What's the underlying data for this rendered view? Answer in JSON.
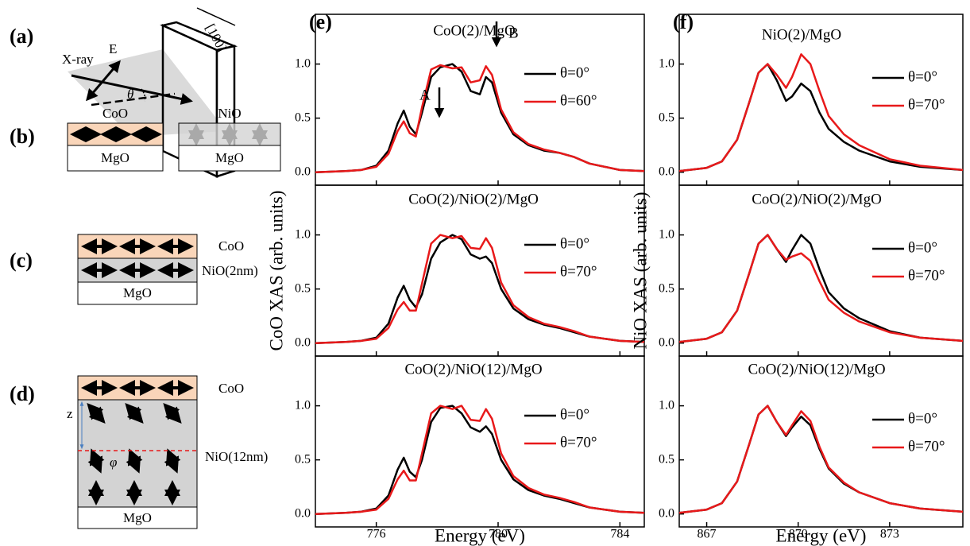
{
  "diagrams": {
    "a": {
      "label": "(a)",
      "xray": "X-ray",
      "field": "E",
      "angle": "θ",
      "direction": "[100]"
    },
    "b": {
      "label": "(b)",
      "left_top": "CoO",
      "left_sub": "MgO",
      "right_top": "NiO",
      "right_sub": "MgO"
    },
    "c": {
      "label": "(c)",
      "top": "CoO",
      "middle": "NiO(2nm)",
      "sub": "MgO"
    },
    "d": {
      "label": "(d)",
      "top": "CoO",
      "depth": "z",
      "middle": "NiO(12nm)",
      "angle": "φ",
      "sub": "MgO"
    }
  },
  "chart_data": [
    {
      "type": "line",
      "panel_label": "(e)",
      "title": "CoO(2)/MgO",
      "annotations": [
        "A",
        "B"
      ],
      "x": [
        774,
        775,
        775.5,
        776,
        776.4,
        776.7,
        776.9,
        777.1,
        777.3,
        777.5,
        777.8,
        778.1,
        778.5,
        778.8,
        779.1,
        779.4,
        779.6,
        779.8,
        780.1,
        780.5,
        781,
        781.5,
        782,
        782.5,
        783,
        784,
        784.8
      ],
      "series": [
        {
          "name": "θ=0°",
          "color": "#000000",
          "values": [
            0,
            0.01,
            0.02,
            0.06,
            0.2,
            0.45,
            0.57,
            0.42,
            0.35,
            0.55,
            0.88,
            0.97,
            1.0,
            0.93,
            0.75,
            0.72,
            0.88,
            0.83,
            0.55,
            0.35,
            0.25,
            0.2,
            0.18,
            0.14,
            0.08,
            0.02,
            0.01
          ]
        },
        {
          "name": "θ=60°",
          "color": "#e8191a",
          "values": [
            0,
            0.01,
            0.02,
            0.05,
            0.17,
            0.38,
            0.47,
            0.36,
            0.33,
            0.6,
            0.95,
            0.99,
            0.96,
            0.97,
            0.83,
            0.85,
            0.98,
            0.9,
            0.58,
            0.37,
            0.26,
            0.21,
            0.18,
            0.14,
            0.08,
            0.02,
            0.01
          ]
        }
      ],
      "xlim": [
        774,
        784.8
      ],
      "ylim": [
        -0.12,
        1.46
      ],
      "xticks": [
        776,
        780,
        784
      ],
      "yticks": [
        {
          "value": 0,
          "label": "0.0"
        },
        {
          "value": 0.5,
          "label": "0.5"
        },
        {
          "value": 1,
          "label": "1.0"
        }
      ]
    },
    {
      "type": "line",
      "title": "CoO(2)/NiO(2)/MgO",
      "ylabel": "CoO XAS (arb. units)",
      "x": [
        774,
        775,
        775.5,
        776,
        776.4,
        776.7,
        776.9,
        777.1,
        777.3,
        777.5,
        777.8,
        778.1,
        778.5,
        778.8,
        779.1,
        779.4,
        779.6,
        779.8,
        780.1,
        780.5,
        781,
        781.5,
        782,
        782.5,
        783,
        784,
        784.8
      ],
      "series": [
        {
          "name": "θ=0°",
          "color": "#000000",
          "values": [
            0,
            0.01,
            0.02,
            0.05,
            0.18,
            0.42,
            0.53,
            0.4,
            0.33,
            0.45,
            0.78,
            0.93,
            1.0,
            0.96,
            0.82,
            0.78,
            0.8,
            0.74,
            0.5,
            0.32,
            0.22,
            0.17,
            0.14,
            0.1,
            0.06,
            0.02,
            0.01
          ]
        },
        {
          "name": "θ=70°",
          "color": "#e8191a",
          "values": [
            0,
            0.01,
            0.02,
            0.04,
            0.14,
            0.31,
            0.38,
            0.3,
            0.3,
            0.55,
            0.92,
            1.0,
            0.97,
            0.99,
            0.88,
            0.87,
            0.97,
            0.88,
            0.56,
            0.35,
            0.24,
            0.18,
            0.15,
            0.11,
            0.06,
            0.02,
            0.01
          ]
        }
      ],
      "xlim": [
        774,
        784.8
      ],
      "ylim": [
        -0.12,
        1.46
      ],
      "xticks": [
        776,
        780,
        784
      ],
      "yticks": [
        {
          "value": 0,
          "label": "0.0"
        },
        {
          "value": 0.5,
          "label": "0.5"
        },
        {
          "value": 1,
          "label": "1.0"
        }
      ]
    },
    {
      "type": "line",
      "title": "CoO(2)/NiO(12)/MgO",
      "xlabel": "Energy (eV)",
      "x": [
        774,
        775,
        775.5,
        776,
        776.4,
        776.7,
        776.9,
        777.1,
        777.3,
        777.5,
        777.8,
        778.1,
        778.5,
        778.8,
        779.1,
        779.4,
        779.6,
        779.8,
        780.1,
        780.5,
        781,
        781.5,
        782,
        782.5,
        783,
        784,
        784.8
      ],
      "series": [
        {
          "name": "θ=0°",
          "color": "#000000",
          "values": [
            0,
            0.01,
            0.02,
            0.05,
            0.17,
            0.41,
            0.52,
            0.39,
            0.34,
            0.5,
            0.85,
            0.98,
            1.0,
            0.93,
            0.8,
            0.76,
            0.81,
            0.74,
            0.5,
            0.32,
            0.22,
            0.17,
            0.14,
            0.1,
            0.06,
            0.02,
            0.01
          ]
        },
        {
          "name": "θ=70°",
          "color": "#e8191a",
          "values": [
            0,
            0.01,
            0.02,
            0.04,
            0.14,
            0.32,
            0.4,
            0.31,
            0.31,
            0.56,
            0.93,
            1.0,
            0.97,
            1.0,
            0.87,
            0.86,
            0.97,
            0.88,
            0.56,
            0.35,
            0.24,
            0.18,
            0.15,
            0.11,
            0.06,
            0.02,
            0.01
          ]
        }
      ],
      "xlim": [
        774,
        784.8
      ],
      "ylim": [
        -0.12,
        1.46
      ],
      "xticks": [
        776,
        780,
        784
      ],
      "yticks": [
        {
          "value": 0,
          "label": "0.0"
        },
        {
          "value": 0.5,
          "label": "0.5"
        },
        {
          "value": 1,
          "label": "1.0"
        }
      ]
    },
    {
      "type": "line",
      "panel_label": "(f)",
      "title": "NiO(2)/MgO",
      "x": [
        866.1,
        867,
        867.5,
        868,
        868.4,
        868.7,
        869,
        869.3,
        869.6,
        869.8,
        870.1,
        870.4,
        870.7,
        871,
        871.5,
        872,
        873,
        874,
        875.4
      ],
      "series": [
        {
          "name": "θ=0°",
          "color": "#000000",
          "values": [
            0.01,
            0.04,
            0.1,
            0.3,
            0.65,
            0.92,
            1.0,
            0.85,
            0.66,
            0.7,
            0.82,
            0.75,
            0.55,
            0.4,
            0.28,
            0.2,
            0.1,
            0.05,
            0.02
          ]
        },
        {
          "name": "θ=70°",
          "color": "#e8191a",
          "values": [
            0.01,
            0.04,
            0.1,
            0.3,
            0.65,
            0.92,
            1.0,
            0.9,
            0.78,
            0.88,
            1.09,
            1.0,
            0.75,
            0.52,
            0.35,
            0.25,
            0.12,
            0.06,
            0.02
          ]
        }
      ],
      "xlim": [
        866.1,
        875.4
      ],
      "ylim": [
        -0.12,
        1.46
      ],
      "xticks": [
        867,
        870,
        873
      ],
      "yticks": [
        {
          "value": 0,
          "label": "0.0"
        },
        {
          "value": 0.5,
          "label": "0.5"
        },
        {
          "value": 1,
          "label": "1.0"
        }
      ]
    },
    {
      "type": "line",
      "title": "CoO(2)/NiO(2)/MgO",
      "ylabel": "NiO XAS (arb. units)",
      "x": [
        866.1,
        867,
        867.5,
        868,
        868.4,
        868.7,
        869,
        869.3,
        869.6,
        869.8,
        870.1,
        870.4,
        870.7,
        871,
        871.5,
        872,
        873,
        874,
        875.4
      ],
      "series": [
        {
          "name": "θ=0°",
          "color": "#000000",
          "values": [
            0.01,
            0.04,
            0.1,
            0.3,
            0.65,
            0.92,
            1.0,
            0.87,
            0.75,
            0.86,
            1.0,
            0.92,
            0.68,
            0.47,
            0.32,
            0.23,
            0.11,
            0.05,
            0.02
          ]
        },
        {
          "name": "θ=70°",
          "color": "#e8191a",
          "values": [
            0.01,
            0.04,
            0.1,
            0.3,
            0.65,
            0.92,
            1.0,
            0.87,
            0.77,
            0.8,
            0.83,
            0.76,
            0.57,
            0.4,
            0.28,
            0.2,
            0.1,
            0.05,
            0.02
          ]
        }
      ],
      "xlim": [
        866.1,
        875.4
      ],
      "ylim": [
        -0.12,
        1.46
      ],
      "xticks": [
        867,
        870,
        873
      ],
      "yticks": [
        {
          "value": 0,
          "label": "0.0"
        },
        {
          "value": 0.5,
          "label": "0.5"
        },
        {
          "value": 1,
          "label": "1.0"
        }
      ]
    },
    {
      "type": "line",
      "title": "CoO(2)/NiO(12)/MgO",
      "xlabel": "Energy (eV)",
      "x": [
        866.1,
        867,
        867.5,
        868,
        868.4,
        868.7,
        869,
        869.3,
        869.6,
        869.8,
        870.1,
        870.4,
        870.7,
        871,
        871.5,
        872,
        873,
        874,
        875.4
      ],
      "series": [
        {
          "name": "θ=0°",
          "color": "#000000",
          "values": [
            0.01,
            0.04,
            0.1,
            0.3,
            0.65,
            0.92,
            1.0,
            0.85,
            0.72,
            0.8,
            0.9,
            0.82,
            0.6,
            0.42,
            0.28,
            0.2,
            0.1,
            0.05,
            0.02
          ]
        },
        {
          "name": "θ=70°",
          "color": "#e8191a",
          "values": [
            0.01,
            0.04,
            0.1,
            0.3,
            0.65,
            0.92,
            1.0,
            0.85,
            0.73,
            0.82,
            0.95,
            0.86,
            0.62,
            0.43,
            0.29,
            0.2,
            0.1,
            0.05,
            0.02
          ]
        }
      ],
      "xlim": [
        866.1,
        875.4
      ],
      "ylim": [
        -0.12,
        1.46
      ],
      "xticks": [
        867,
        870,
        873
      ],
      "yticks": [
        {
          "value": 0,
          "label": "0.0"
        },
        {
          "value": 0.5,
          "label": "0.5"
        },
        {
          "value": 1,
          "label": "1.0"
        }
      ]
    }
  ]
}
